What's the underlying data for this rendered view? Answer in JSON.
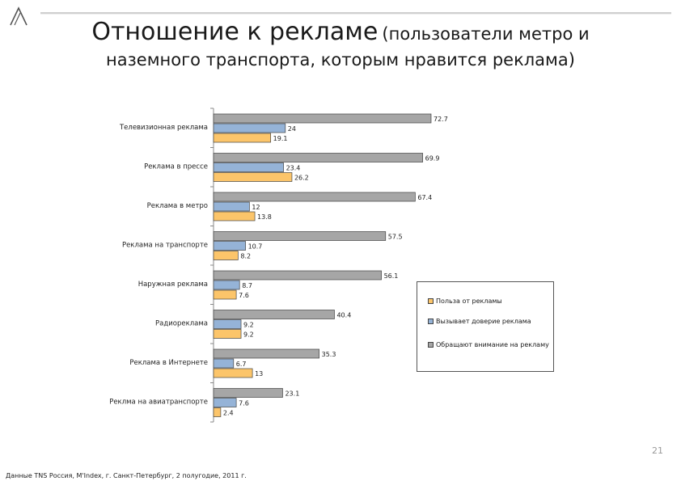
{
  "header": {
    "title_main": "Отношение к рекламе",
    "title_sub": "(пользователи метро и",
    "title_line2": "наземного транспорта, которым нравится реклама)"
  },
  "page_number": "21",
  "footer": {
    "source": "Данные TNS Россия, M'Index, г. Санкт-Петербург, 2 полугодие, 2011 г."
  },
  "colors": {
    "benefit": "#fcc56a",
    "trust": "#95b3d7",
    "attention": "#a6a6a6"
  },
  "chart_data": {
    "type": "bar",
    "orientation": "horizontal",
    "categories": [
      "Телевизионная реклама",
      "Реклама в прессе",
      "Реклама в метро",
      "Реклама на транспорте",
      "Наружная реклама",
      "Радиореклама",
      "Реклама в Интернете",
      "Реклма на авиатранспорте"
    ],
    "series": [
      {
        "name": "Обращают внимание на рекламу",
        "values": [
          72.7,
          69.9,
          67.4,
          57.5,
          56.1,
          40.4,
          35.3,
          23.1
        ]
      },
      {
        "name": "Вызывает доверие реклама",
        "values": [
          24,
          23.4,
          12,
          10.7,
          8.7,
          9.2,
          6.7,
          7.6
        ]
      },
      {
        "name": "Польза от рекламы",
        "values": [
          19.1,
          26.2,
          13.8,
          8.2,
          7.6,
          9.2,
          13,
          2.4
        ]
      }
    ],
    "legend": {
      "position": "right",
      "items": [
        "Польза от рекламы",
        "Вызывает доверие реклама",
        "Обращают внимание на рекламу"
      ]
    },
    "xlim": [
      0,
      80
    ],
    "grid": false,
    "xlabel": "",
    "ylabel": ""
  }
}
